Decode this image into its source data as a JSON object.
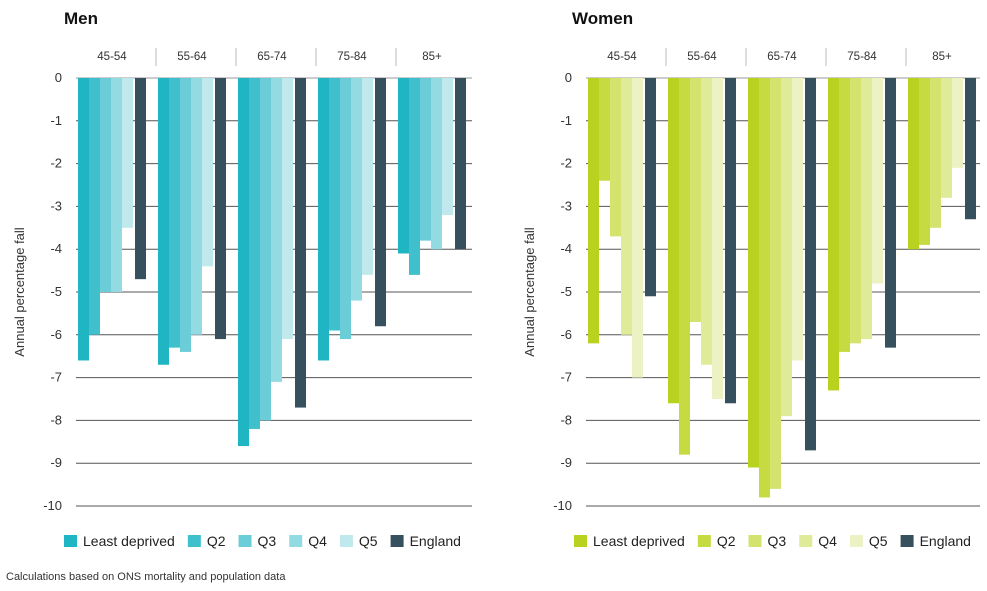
{
  "chart_data": [
    {
      "type": "bar",
      "title": "Men",
      "ylabel": "Annual percentage fall",
      "ylim": [
        -10,
        0
      ],
      "yticks": [
        0,
        -1,
        -2,
        -3,
        -4,
        -5,
        -6,
        -7,
        -8,
        -9,
        -10
      ],
      "categories": [
        "45-54",
        "55-64",
        "65-74",
        "75-84",
        "85+"
      ],
      "grid": true,
      "legend_position": "bottom",
      "series": [
        {
          "name": "Least deprived",
          "color": "#1fb5c2",
          "values": [
            -6.6,
            -6.7,
            -8.6,
            -6.6,
            -4.1
          ]
        },
        {
          "name": "Q2",
          "color": "#3fc0cc",
          "values": [
            -6.0,
            -6.3,
            -8.2,
            -5.9,
            -4.6
          ]
        },
        {
          "name": "Q3",
          "color": "#6acdd7",
          "values": [
            -5.0,
            -6.4,
            -8.0,
            -6.1,
            -3.8
          ]
        },
        {
          "name": "Q4",
          "color": "#93dbe2",
          "values": [
            -5.0,
            -6.0,
            -7.1,
            -5.2,
            -4.0
          ]
        },
        {
          "name": "Q5",
          "color": "#c0e9ed",
          "values": [
            -3.5,
            -4.4,
            -6.1,
            -4.6,
            -3.2
          ]
        },
        {
          "name": "England",
          "color": "#37505e",
          "values": [
            -4.7,
            -6.1,
            -7.7,
            -5.8,
            -4.0
          ]
        }
      ]
    },
    {
      "type": "bar",
      "title": "Women",
      "ylabel": "Annual percentage fall",
      "ylim": [
        -10,
        0
      ],
      "yticks": [
        0,
        -1,
        -2,
        -3,
        -4,
        -5,
        -6,
        -7,
        -8,
        -9,
        -10
      ],
      "categories": [
        "45-54",
        "55-64",
        "65-74",
        "75-84",
        "85+"
      ],
      "grid": true,
      "legend_position": "bottom",
      "series": [
        {
          "name": "Least deprived",
          "color": "#b9d21f",
          "values": [
            -6.2,
            -7.6,
            -9.1,
            -7.3,
            -4.0
          ]
        },
        {
          "name": "Q2",
          "color": "#c6da42",
          "values": [
            -2.4,
            -8.8,
            -9.8,
            -6.4,
            -3.9
          ]
        },
        {
          "name": "Q3",
          "color": "#d3e36e",
          "values": [
            -3.7,
            -5.7,
            -9.6,
            -6.2,
            -3.5
          ]
        },
        {
          "name": "Q4",
          "color": "#e0eb9a",
          "values": [
            -6.0,
            -6.7,
            -7.9,
            -6.1,
            -2.8
          ]
        },
        {
          "name": "Q5",
          "color": "#ecf2c4",
          "values": [
            -7.0,
            -7.5,
            -6.6,
            -4.8,
            -2.1
          ]
        },
        {
          "name": "England",
          "color": "#37505e",
          "values": [
            -5.1,
            -7.6,
            -8.7,
            -6.3,
            -3.3
          ]
        }
      ]
    }
  ],
  "footnote": "Calculations based on ONS mortality and population data"
}
